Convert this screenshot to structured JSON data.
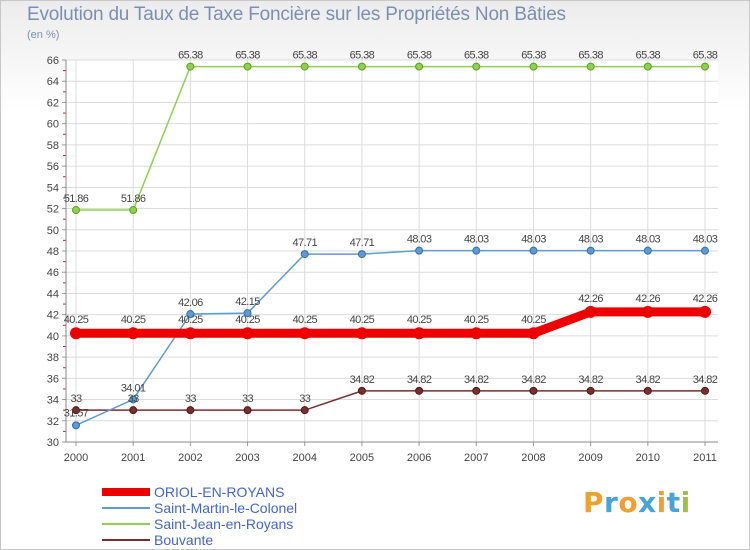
{
  "title": "Evolution du Taux de Taxe Foncière sur les Propriétés Non Bâties",
  "subtitle": "(en %)",
  "brand": {
    "letters": [
      "P",
      "r",
      "o",
      "x",
      "i",
      "t",
      "i"
    ],
    "colors": [
      "#f0a030",
      "#4aa3d8",
      "#f0a030",
      "#4aa3d8",
      "#f0a030",
      "#4aa3d8",
      "#a0c040"
    ]
  },
  "chart_data": {
    "type": "line",
    "title": "Evolution du Taux de Taxe Foncière sur les Propriétés Non Bâties",
    "ylabel": "(en %)",
    "xlabel": "",
    "ylim": [
      30,
      66
    ],
    "yticks": [
      30,
      32,
      34,
      36,
      38,
      40,
      42,
      44,
      46,
      48,
      50,
      52,
      54,
      56,
      58,
      60,
      62,
      64,
      66
    ],
    "categories": [
      "2000",
      "2001",
      "2002",
      "2003",
      "2004",
      "2005",
      "2006",
      "2007",
      "2008",
      "2009",
      "2010",
      "2011"
    ],
    "grid": true,
    "legend_position": "bottom-left",
    "series": [
      {
        "name": "ORIOL-EN-ROYANS",
        "color": "#ee0000",
        "values": [
          40.25,
          40.25,
          40.25,
          40.25,
          40.25,
          40.25,
          40.25,
          40.25,
          40.25,
          42.26,
          42.26,
          42.26
        ],
        "labels": [
          "40.25",
          "40.25",
          "40.25",
          "40.25",
          "40.25",
          "40.25",
          "40.25",
          "40.25",
          "40.25",
          "42.26",
          "42.26",
          "42.26"
        ]
      },
      {
        "name": "Saint-Martin-le-Colonel",
        "color": "#5f9bd0",
        "values": [
          31.57,
          34.01,
          42.06,
          42.15,
          47.71,
          47.71,
          48.03,
          48.03,
          48.03,
          48.03,
          48.03,
          48.03
        ],
        "labels": [
          "31.57",
          "34.01",
          "42.06",
          "42.15",
          "47.71",
          "47.71",
          "48.03",
          "48.03",
          "48.03",
          "48.03",
          "48.03",
          "48.03"
        ]
      },
      {
        "name": "Saint-Jean-en-Royans",
        "color": "#8fd14f",
        "values": [
          51.86,
          51.86,
          65.38,
          65.38,
          65.38,
          65.38,
          65.38,
          65.38,
          65.38,
          65.38,
          65.38,
          65.38
        ],
        "labels": [
          "51.86",
          "51.86",
          "65.38",
          "65.38",
          "65.38",
          "65.38",
          "65.38",
          "65.38",
          "65.38",
          "65.38",
          "65.38",
          "65.38"
        ]
      },
      {
        "name": "Bouvante",
        "color": "#7a2e2e",
        "values": [
          33,
          33,
          33,
          33,
          33,
          34.82,
          34.82,
          34.82,
          34.82,
          34.82,
          34.82,
          34.82
        ],
        "labels": [
          "33",
          "33",
          "33",
          "33",
          "33",
          "34.82",
          "34.82",
          "34.82",
          "34.82",
          "34.82",
          "34.82",
          "34.82"
        ]
      }
    ]
  }
}
